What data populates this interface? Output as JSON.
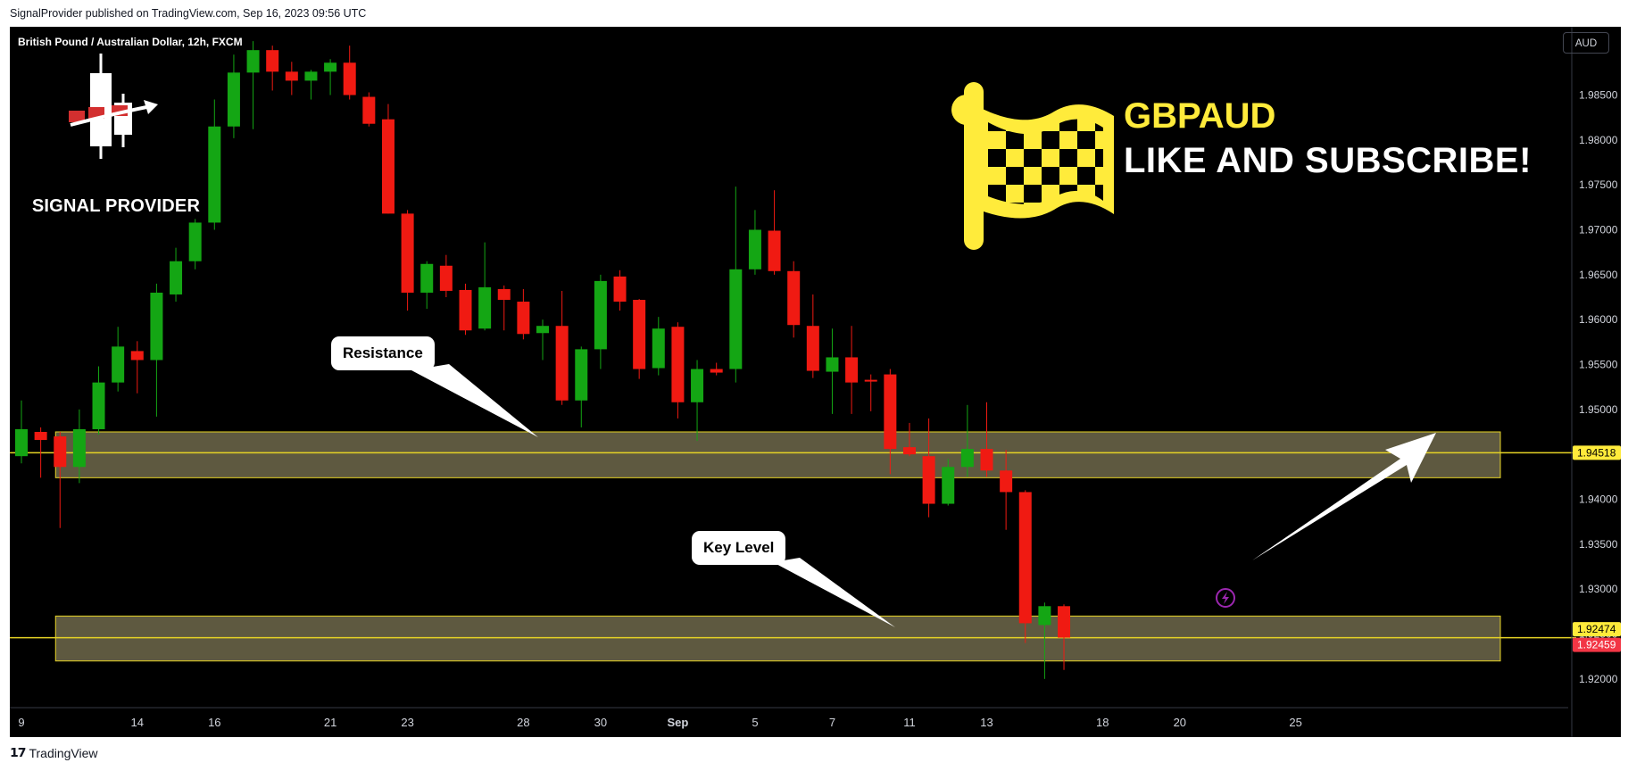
{
  "header": {
    "published": "SignalProvider published on TradingView.com, Sep 16, 2023 09:56 UTC"
  },
  "chart_header": {
    "ticker": "British Pound / Australian Dollar, 12h, FXCM",
    "currency_button": "AUD"
  },
  "logo": {
    "text": "SIGNAL PROVIDER"
  },
  "promo": {
    "symbol": "GBPAUD",
    "line": "LIKE AND SUBSCRIBE!"
  },
  "annotations": {
    "resistance": "Resistance",
    "key_level": "Key Level"
  },
  "footer": {
    "brand": "TradingView"
  },
  "colors": {
    "up": "#089981",
    "down": "#f23645",
    "zone_fill": "#5e5940",
    "zone_border": "#e6d325",
    "yellow": "#ffeb3b"
  },
  "chart_data": {
    "type": "candlestick",
    "title": "British Pound / Australian Dollar, 12h, FXCM",
    "ylim": [
      1.9174,
      1.9926
    ],
    "xlabel": "",
    "ylabel": "",
    "x_tick_labels": [
      "9",
      "14",
      "16",
      "21",
      "23",
      "28",
      "30",
      "Sep",
      "5",
      "7",
      "11",
      "13",
      "18",
      "20",
      "25"
    ],
    "x_tick_index": [
      0,
      6,
      10,
      16,
      20,
      26,
      30,
      34,
      38,
      42,
      46,
      50,
      56,
      60,
      66
    ],
    "y_ticks": [
      1.92,
      1.925,
      1.93,
      1.935,
      1.94,
      1.945,
      1.95,
      1.955,
      1.96,
      1.965,
      1.97,
      1.975,
      1.98,
      1.985
    ],
    "y_tick_labels": [
      "1.92000",
      "1.92500",
      "1.93000",
      "1.93500",
      "1.94000",
      "1.94500",
      "1.95000",
      "1.95500",
      "1.96000",
      "1.96500",
      "1.97000",
      "1.97500",
      "1.98000",
      "1.98500"
    ],
    "candles": [
      {
        "o": 1.9448,
        "h": 1.951,
        "l": 1.944,
        "c": 1.9478
      },
      {
        "o": 1.9475,
        "h": 1.948,
        "l": 1.9424,
        "c": 1.9466
      },
      {
        "o": 1.947,
        "h": 1.9475,
        "l": 1.9368,
        "c": 1.9436
      },
      {
        "o": 1.9436,
        "h": 1.95,
        "l": 1.9418,
        "c": 1.9478
      },
      {
        "o": 1.9478,
        "h": 1.9548,
        "l": 1.9472,
        "c": 1.953
      },
      {
        "o": 1.953,
        "h": 1.9592,
        "l": 1.952,
        "c": 1.957
      },
      {
        "o": 1.9565,
        "h": 1.9576,
        "l": 1.9518,
        "c": 1.9555
      },
      {
        "o": 1.9555,
        "h": 1.964,
        "l": 1.9492,
        "c": 1.963
      },
      {
        "o": 1.9628,
        "h": 1.968,
        "l": 1.962,
        "c": 1.9665
      },
      {
        "o": 1.9665,
        "h": 1.9712,
        "l": 1.9656,
        "c": 1.9708
      },
      {
        "o": 1.9708,
        "h": 1.9845,
        "l": 1.97,
        "c": 1.9815
      },
      {
        "o": 1.9815,
        "h": 1.9895,
        "l": 1.9802,
        "c": 1.9875
      },
      {
        "o": 1.9875,
        "h": 1.991,
        "l": 1.9812,
        "c": 1.99
      },
      {
        "o": 1.99,
        "h": 1.9905,
        "l": 1.9855,
        "c": 1.9876
      },
      {
        "o": 1.9876,
        "h": 1.9887,
        "l": 1.985,
        "c": 1.9866
      },
      {
        "o": 1.9866,
        "h": 1.9878,
        "l": 1.9845,
        "c": 1.9876
      },
      {
        "o": 1.9876,
        "h": 1.989,
        "l": 1.985,
        "c": 1.9886
      },
      {
        "o": 1.9886,
        "h": 1.9905,
        "l": 1.9845,
        "c": 1.985
      },
      {
        "o": 1.9848,
        "h": 1.9853,
        "l": 1.9815,
        "c": 1.9818
      },
      {
        "o": 1.9823,
        "h": 1.984,
        "l": 1.9718,
        "c": 1.9718
      },
      {
        "o": 1.9718,
        "h": 1.9722,
        "l": 1.961,
        "c": 1.963
      },
      {
        "o": 1.963,
        "h": 1.9665,
        "l": 1.9612,
        "c": 1.9662
      },
      {
        "o": 1.966,
        "h": 1.9672,
        "l": 1.9625,
        "c": 1.9632
      },
      {
        "o": 1.9633,
        "h": 1.964,
        "l": 1.9583,
        "c": 1.9588
      },
      {
        "o": 1.959,
        "h": 1.9686,
        "l": 1.9588,
        "c": 1.9636
      },
      {
        "o": 1.9634,
        "h": 1.9638,
        "l": 1.9588,
        "c": 1.9622
      },
      {
        "o": 1.962,
        "h": 1.9634,
        "l": 1.9578,
        "c": 1.9584
      },
      {
        "o": 1.9585,
        "h": 1.96,
        "l": 1.9555,
        "c": 1.9593
      },
      {
        "o": 1.9593,
        "h": 1.9632,
        "l": 1.9505,
        "c": 1.951
      },
      {
        "o": 1.951,
        "h": 1.957,
        "l": 1.948,
        "c": 1.9567
      },
      {
        "o": 1.9567,
        "h": 1.965,
        "l": 1.9545,
        "c": 1.9643
      },
      {
        "o": 1.9648,
        "h": 1.9655,
        "l": 1.961,
        "c": 1.962
      },
      {
        "o": 1.9622,
        "h": 1.9623,
        "l": 1.9534,
        "c": 1.9545
      },
      {
        "o": 1.9546,
        "h": 1.9603,
        "l": 1.9538,
        "c": 1.959
      },
      {
        "o": 1.9592,
        "h": 1.9597,
        "l": 1.949,
        "c": 1.9508
      },
      {
        "o": 1.9508,
        "h": 1.9555,
        "l": 1.9465,
        "c": 1.9545
      },
      {
        "o": 1.9545,
        "h": 1.9552,
        "l": 1.9538,
        "c": 1.9541
      },
      {
        "o": 1.9545,
        "h": 1.9748,
        "l": 1.953,
        "c": 1.9656
      },
      {
        "o": 1.9656,
        "h": 1.9722,
        "l": 1.965,
        "c": 1.97
      },
      {
        "o": 1.9699,
        "h": 1.9744,
        "l": 1.965,
        "c": 1.9654
      },
      {
        "o": 1.9654,
        "h": 1.9665,
        "l": 1.958,
        "c": 1.9594
      },
      {
        "o": 1.9593,
        "h": 1.9628,
        "l": 1.9535,
        "c": 1.9543
      },
      {
        "o": 1.9542,
        "h": 1.959,
        "l": 1.9495,
        "c": 1.9558
      },
      {
        "o": 1.9558,
        "h": 1.9593,
        "l": 1.9495,
        "c": 1.953
      },
      {
        "o": 1.9533,
        "h": 1.9539,
        "l": 1.9498,
        "c": 1.9531
      },
      {
        "o": 1.9539,
        "h": 1.9545,
        "l": 1.9428,
        "c": 1.9456
      },
      {
        "o": 1.9458,
        "h": 1.9485,
        "l": 1.9448,
        "c": 1.945
      },
      {
        "o": 1.9448,
        "h": 1.949,
        "l": 1.938,
        "c": 1.9395
      },
      {
        "o": 1.9395,
        "h": 1.9445,
        "l": 1.9393,
        "c": 1.9436
      },
      {
        "o": 1.9436,
        "h": 1.9505,
        "l": 1.9425,
        "c": 1.9456
      },
      {
        "o": 1.9456,
        "h": 1.9508,
        "l": 1.9425,
        "c": 1.9432
      },
      {
        "o": 1.9432,
        "h": 1.9455,
        "l": 1.9366,
        "c": 1.9408
      },
      {
        "o": 1.9408,
        "h": 1.941,
        "l": 1.924,
        "c": 1.9262
      },
      {
        "o": 1.926,
        "h": 1.9285,
        "l": 1.92,
        "c": 1.9281
      },
      {
        "o": 1.9281,
        "h": 1.9283,
        "l": 1.921,
        "c": 1.9246
      }
    ],
    "zones": [
      {
        "name": "resistance-zone",
        "top": 1.9475,
        "bottom": 1.9424,
        "start_index": 2
      },
      {
        "name": "key-level-zone",
        "top": 1.927,
        "bottom": 1.922,
        "start_index": 2
      }
    ],
    "horizontal_lines": [
      1.94518,
      1.92459
    ],
    "price_labels": [
      {
        "value": 1.94518,
        "text": "1.94518",
        "color": "#ffeb3b",
        "text_color": "#000000"
      },
      {
        "value": 1.92474,
        "text": "1.92474",
        "color": "#ffeb3b",
        "text_color": "#000000"
      },
      {
        "value": 1.92459,
        "text": "1.92459",
        "color": "#f23645",
        "text_color": "#ffffff"
      }
    ]
  }
}
